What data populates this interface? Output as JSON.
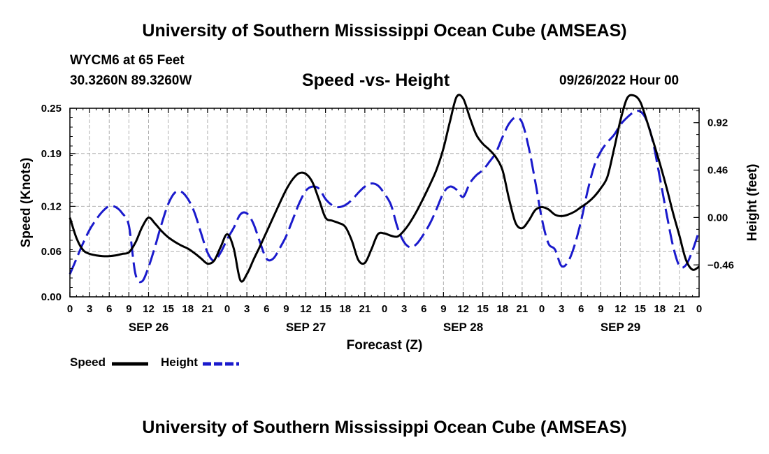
{
  "page": {
    "title": "University of Southern Mississippi Ocean Cube (AMSEAS)",
    "footer_title": "University of Southern Mississippi Ocean Cube (AMSEAS)",
    "station": "WYCM6 at 65 Feet",
    "coordinates": "30.3260N  89.3260W",
    "subtitle": "Speed -vs- Height",
    "date": "09/26/2022 Hour 00"
  },
  "chart_data": {
    "type": "line",
    "title": "Speed -vs- Height",
    "xlabel": "Forecast (Z)",
    "ylabel": "Speed (Knots)",
    "y2label": "Height (feet)",
    "x_range_hours": [
      0,
      96
    ],
    "ylim": [
      0,
      0.25
    ],
    "y2lim": [
      -0.77,
      1.06
    ],
    "y_ticks": [
      0.0,
      0.06,
      0.12,
      0.19,
      0.25
    ],
    "y_tick_labels": [
      "0.00",
      "0.06",
      "0.12",
      "0.19",
      "0.25"
    ],
    "y2_ticks": [
      -0.46,
      0.0,
      0.46,
      0.92
    ],
    "y2_tick_labels": [
      "−0.46",
      "0.00",
      "0.46",
      "0.92"
    ],
    "x_tick_hours": [
      0,
      3,
      6,
      9,
      12,
      15,
      18,
      21,
      24,
      27,
      30,
      33,
      36,
      39,
      42,
      45,
      48,
      51,
      54,
      57,
      60,
      63,
      66,
      69,
      72,
      75,
      78,
      81,
      84,
      87,
      90,
      93,
      96
    ],
    "x_tick_labels": [
      "0",
      "3",
      "6",
      "9",
      "12",
      "15",
      "18",
      "21",
      "0",
      "3",
      "6",
      "9",
      "12",
      "15",
      "18",
      "21",
      "0",
      "3",
      "6",
      "9",
      "12",
      "15",
      "18",
      "21",
      "0",
      "3",
      "6",
      "9",
      "12",
      "15",
      "18",
      "21",
      "0"
    ],
    "date_labels": [
      {
        "hour": 12,
        "label": "SEP 26"
      },
      {
        "hour": 36,
        "label": "SEP 27"
      },
      {
        "hour": 60,
        "label": "SEP 28"
      },
      {
        "hour": 84,
        "label": "SEP 29"
      }
    ],
    "grid": true,
    "legend": [
      {
        "name": "Speed",
        "color": "#000000",
        "style": "solid"
      },
      {
        "name": "Height",
        "color": "#1a1acc",
        "style": "dashed"
      }
    ],
    "series": [
      {
        "name": "Speed",
        "axis": "left",
        "color": "#000000",
        "style": "solid",
        "x": [
          0,
          1,
          2,
          3,
          4,
          5,
          6,
          7,
          8,
          9,
          10,
          11,
          12,
          13,
          14,
          15,
          16,
          17,
          18,
          19,
          20,
          21,
          22,
          23,
          24,
          25,
          26,
          27,
          28,
          29,
          30,
          31,
          32,
          33,
          34,
          35,
          36,
          37,
          38,
          39,
          40,
          41,
          42,
          43,
          44,
          45,
          46,
          47,
          48,
          49,
          50,
          51,
          52,
          53,
          54,
          55,
          56,
          57,
          58,
          59,
          60,
          61,
          62,
          63,
          64,
          65,
          66,
          67,
          68,
          69,
          70,
          71,
          72,
          73,
          74,
          75,
          76,
          77,
          78,
          79,
          80,
          81,
          82,
          83,
          84,
          85,
          86,
          87,
          88,
          89,
          90,
          91,
          92,
          93,
          94,
          95,
          96
        ],
        "values": [
          0.105,
          0.078,
          0.062,
          0.057,
          0.055,
          0.054,
          0.054,
          0.055,
          0.057,
          0.059,
          0.072,
          0.092,
          0.105,
          0.097,
          0.087,
          0.079,
          0.073,
          0.068,
          0.064,
          0.058,
          0.051,
          0.044,
          0.048,
          0.066,
          0.083,
          0.064,
          0.022,
          0.03,
          0.049,
          0.067,
          0.086,
          0.105,
          0.124,
          0.142,
          0.156,
          0.164,
          0.163,
          0.152,
          0.129,
          0.105,
          0.101,
          0.098,
          0.093,
          0.075,
          0.049,
          0.045,
          0.063,
          0.083,
          0.084,
          0.081,
          0.08,
          0.088,
          0.1,
          0.115,
          0.132,
          0.15,
          0.17,
          0.197,
          0.233,
          0.265,
          0.263,
          0.238,
          0.215,
          0.203,
          0.195,
          0.185,
          0.168,
          0.13,
          0.098,
          0.091,
          0.101,
          0.115,
          0.119,
          0.116,
          0.109,
          0.107,
          0.109,
          0.113,
          0.119,
          0.125,
          0.133,
          0.144,
          0.159,
          0.195,
          0.234,
          0.263,
          0.267,
          0.259,
          0.234,
          0.206,
          0.177,
          0.146,
          0.112,
          0.081,
          0.049,
          0.036,
          0.04
        ]
      },
      {
        "name": "Height",
        "axis": "right",
        "color": "#1a1acc",
        "style": "dashed",
        "x": [
          0,
          1,
          2,
          3,
          4,
          5,
          6,
          7,
          8,
          9,
          10,
          11,
          12,
          13,
          14,
          15,
          16,
          17,
          18,
          19,
          20,
          21,
          22,
          23,
          24,
          25,
          26,
          27,
          28,
          29,
          30,
          31,
          32,
          33,
          34,
          35,
          36,
          37,
          38,
          39,
          40,
          41,
          42,
          43,
          44,
          45,
          46,
          47,
          48,
          49,
          50,
          51,
          52,
          53,
          54,
          55,
          56,
          57,
          58,
          59,
          60,
          61,
          62,
          63,
          64,
          65,
          66,
          67,
          68,
          69,
          70,
          71,
          72,
          73,
          74,
          75,
          76,
          77,
          78,
          79,
          80,
          81,
          82,
          83,
          84,
          85,
          86,
          87,
          88,
          89,
          90,
          91,
          92,
          93,
          94,
          95,
          96
        ],
        "values": [
          -0.55,
          -0.4,
          -0.25,
          -0.12,
          -0.02,
          0.06,
          0.11,
          0.1,
          0.04,
          -0.08,
          -0.55,
          -0.62,
          -0.48,
          -0.28,
          -0.06,
          0.13,
          0.24,
          0.25,
          0.18,
          0.05,
          -0.15,
          -0.34,
          -0.42,
          -0.34,
          -0.21,
          -0.1,
          0.03,
          0.04,
          -0.06,
          -0.24,
          -0.4,
          -0.4,
          -0.3,
          -0.18,
          -0.02,
          0.14,
          0.26,
          0.3,
          0.28,
          0.18,
          0.12,
          0.1,
          0.12,
          0.17,
          0.24,
          0.3,
          0.33,
          0.31,
          0.23,
          0.12,
          -0.1,
          -0.24,
          -0.29,
          -0.25,
          -0.16,
          -0.05,
          0.09,
          0.24,
          0.3,
          0.27,
          0.2,
          0.33,
          0.41,
          0.46,
          0.54,
          0.63,
          0.78,
          0.91,
          0.97,
          0.92,
          0.68,
          0.35,
          -0.01,
          -0.25,
          -0.31,
          -0.47,
          -0.43,
          -0.27,
          -0.03,
          0.26,
          0.5,
          0.64,
          0.73,
          0.8,
          0.9,
          0.97,
          1.02,
          1.03,
          0.94,
          0.72,
          0.39,
          0.05,
          -0.27,
          -0.47,
          -0.46,
          -0.32,
          -0.13
        ]
      }
    ]
  }
}
